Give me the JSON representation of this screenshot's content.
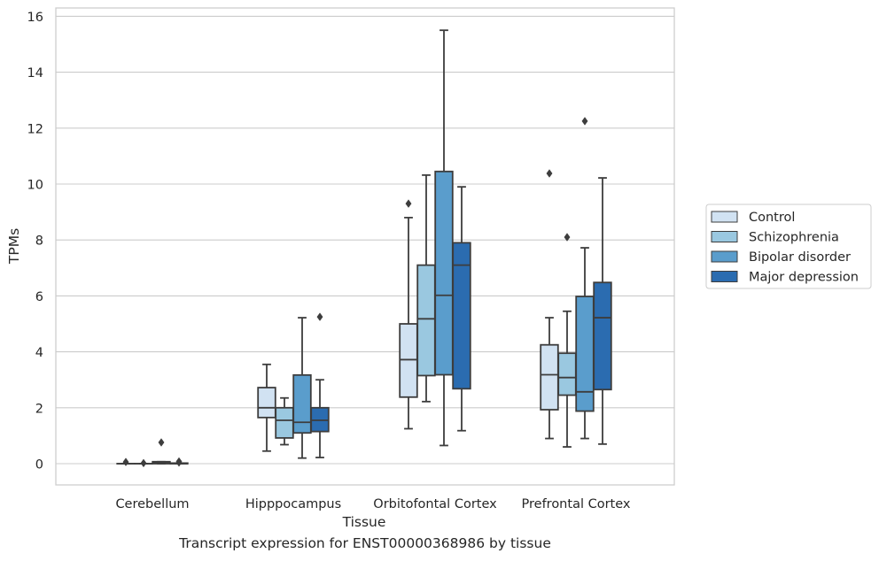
{
  "caption": "Transcript expression for ENST00000368986 by tissue",
  "chart_data": {
    "type": "box",
    "title": "",
    "xlabel": "Tissue",
    "ylabel": "TPMs",
    "ylim": [
      -0.75,
      16.3
    ],
    "yticks": [
      0,
      2,
      4,
      6,
      8,
      10,
      12,
      14,
      16
    ],
    "grid": "horizontal",
    "legend_position": "right",
    "categories": [
      "Cerebellum",
      "Hipppocampus",
      "Orbitofontal Cortex",
      "Prefrontal Cortex"
    ],
    "series": [
      {
        "name": "Control",
        "color": "#d1e2f2",
        "boxes": [
          {
            "whislo": 0.0,
            "q1": 0.0,
            "med": 0.0,
            "q3": 0.0,
            "whishi": 0.0,
            "fliers": [
              0.06
            ]
          },
          {
            "whislo": 0.45,
            "q1": 1.65,
            "med": 2.0,
            "q3": 2.72,
            "whishi": 3.55,
            "fliers": []
          },
          {
            "whislo": 1.25,
            "q1": 2.38,
            "med": 3.72,
            "q3": 5.0,
            "whishi": 8.8,
            "fliers": [
              9.3
            ]
          },
          {
            "whislo": 0.9,
            "q1": 1.93,
            "med": 3.18,
            "q3": 4.25,
            "whishi": 5.22,
            "fliers": [
              10.38
            ]
          }
        ]
      },
      {
        "name": "Schizophrenia",
        "color": "#9ac8e0",
        "boxes": [
          {
            "whislo": 0.0,
            "q1": 0.0,
            "med": 0.0,
            "q3": 0.0,
            "whishi": 0.0,
            "fliers": [
              0.02
            ]
          },
          {
            "whislo": 0.68,
            "q1": 0.92,
            "med": 1.55,
            "q3": 2.0,
            "whishi": 2.35,
            "fliers": []
          },
          {
            "whislo": 2.22,
            "q1": 3.15,
            "med": 5.18,
            "q3": 7.1,
            "whishi": 10.32,
            "fliers": []
          },
          {
            "whislo": 0.6,
            "q1": 2.45,
            "med": 3.08,
            "q3": 3.95,
            "whishi": 5.45,
            "fliers": [
              8.1
            ]
          }
        ]
      },
      {
        "name": "Bipolar disorder",
        "color": "#5a9dcc",
        "boxes": [
          {
            "whislo": 0.0,
            "q1": 0.0,
            "med": 0.02,
            "q3": 0.07,
            "whishi": 0.07,
            "fliers": [
              0.76
            ]
          },
          {
            "whislo": 0.2,
            "q1": 1.1,
            "med": 1.48,
            "q3": 3.17,
            "whishi": 5.22,
            "fliers": []
          },
          {
            "whislo": 0.65,
            "q1": 3.18,
            "med": 6.02,
            "q3": 10.45,
            "whishi": 15.5,
            "fliers": []
          },
          {
            "whislo": 0.9,
            "q1": 1.88,
            "med": 2.57,
            "q3": 5.98,
            "whishi": 7.72,
            "fliers": [
              12.25
            ]
          }
        ]
      },
      {
        "name": "Major depression",
        "color": "#2b6cb0",
        "boxes": [
          {
            "whislo": 0.0,
            "q1": 0.0,
            "med": 0.0,
            "q3": 0.02,
            "whishi": 0.02,
            "fliers": [
              0.08,
              0.04
            ]
          },
          {
            "whislo": 0.22,
            "q1": 1.15,
            "med": 1.55,
            "q3": 2.0,
            "whishi": 3.0,
            "fliers": [
              5.25
            ]
          },
          {
            "whislo": 1.18,
            "q1": 2.68,
            "med": 7.1,
            "q3": 7.9,
            "whishi": 9.9,
            "fliers": []
          },
          {
            "whislo": 0.7,
            "q1": 2.65,
            "med": 5.22,
            "q3": 6.48,
            "whishi": 10.22,
            "fliers": []
          }
        ]
      }
    ]
  }
}
